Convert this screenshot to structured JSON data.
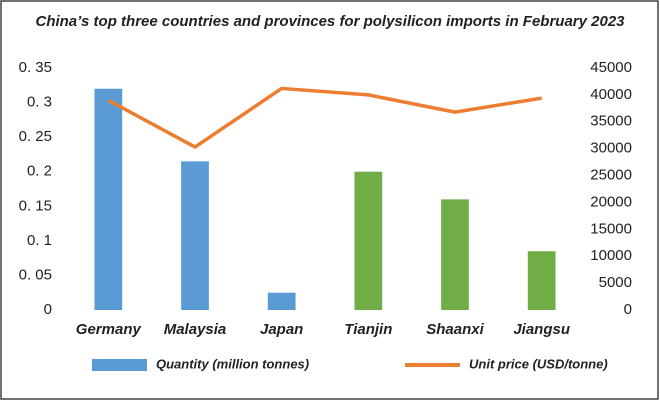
{
  "chart_data": {
    "type": "bar",
    "title": "China’s top three countries and provinces for polysilicon imports in February 2023",
    "categories": [
      "Germany",
      "Malaysia",
      "Japan",
      "Tianjin",
      "Shaanxi",
      "Jiangsu"
    ],
    "series": [
      {
        "name": "Quantity (million tonnes)",
        "type": "bar",
        "color": "#5b9bd5",
        "colors": [
          "#5b9bd5",
          "#5b9bd5",
          "#5b9bd5",
          "#70ad47",
          "#70ad47",
          "#70ad47"
        ],
        "values": [
          0.32,
          0.215,
          0.025,
          0.2,
          0.16,
          0.085
        ]
      },
      {
        "name": "Unit price (USD/tonne)",
        "type": "line",
        "axis": "y2",
        "color": "#ed7d31",
        "values": [
          39000,
          30300,
          41200,
          40000,
          36800,
          39400
        ]
      }
    ],
    "ylim": [
      0,
      0.35
    ],
    "yticks": [
      {
        "value": 0,
        "label": "0"
      },
      {
        "value": 0.05,
        "label": "0. 05"
      },
      {
        "value": 0.1,
        "label": "0. 1"
      },
      {
        "value": 0.15,
        "label": "0. 15"
      },
      {
        "value": 0.2,
        "label": "0. 2"
      },
      {
        "value": 0.25,
        "label": "0. 25"
      },
      {
        "value": 0.3,
        "label": "0. 3"
      },
      {
        "value": 0.35,
        "label": "0. 35"
      }
    ],
    "y2lim": [
      0,
      45000
    ],
    "y2ticks": [
      0,
      5000,
      10000,
      15000,
      20000,
      25000,
      30000,
      35000,
      40000,
      45000
    ],
    "grid": false
  }
}
